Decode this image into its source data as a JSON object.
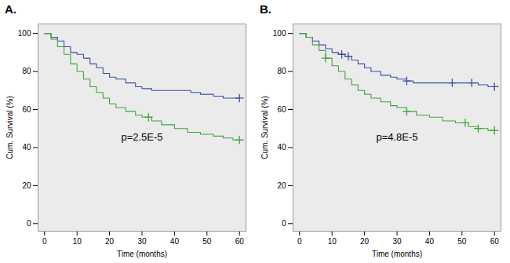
{
  "chart_data": [
    {
      "type": "line",
      "title": "A.",
      "x_label": "Time (months)",
      "y_label": "Cum. Survival (%)",
      "annotation": "p=2.5E-5",
      "xlim": [
        -2,
        62
      ],
      "ylim": [
        -4,
        105
      ],
      "xticks": [
        0,
        10,
        20,
        30,
        40,
        50,
        60
      ],
      "yticks": [
        0,
        20,
        40,
        60,
        80,
        100
      ],
      "grid": false,
      "line_style": "step",
      "marker": "plus",
      "series": [
        {
          "color": "#3a4fa6",
          "x": [
            0,
            2,
            4,
            6,
            8,
            10,
            12,
            14,
            16,
            18,
            20,
            22,
            25,
            28,
            30,
            33,
            35,
            40,
            45,
            48,
            52,
            55,
            60
          ],
          "values": [
            100,
            98,
            96,
            93,
            90,
            89,
            87,
            84,
            82,
            79,
            77,
            76,
            74,
            72,
            71,
            70,
            70,
            70,
            69,
            68,
            67,
            66,
            66
          ],
          "censored": [
            60
          ]
        },
        {
          "color": "#3fa53f",
          "x": [
            0,
            2,
            4,
            6,
            8,
            10,
            12,
            14,
            16,
            18,
            20,
            22,
            25,
            28,
            30,
            33,
            36,
            40,
            44,
            48,
            52,
            55,
            58,
            60
          ],
          "values": [
            100,
            97,
            93,
            89,
            84,
            80,
            76,
            72,
            69,
            66,
            63,
            61,
            59,
            57,
            56,
            54,
            52,
            50,
            48,
            47,
            46,
            45,
            44,
            44
          ],
          "censored": [
            32,
            60
          ]
        }
      ]
    },
    {
      "type": "line",
      "title": "B.",
      "x_label": "Time (months)",
      "y_label": "Cum. Survival (%)",
      "annotation": "p=4.8E-5",
      "xlim": [
        -2,
        62
      ],
      "ylim": [
        -4,
        105
      ],
      "xticks": [
        0,
        10,
        20,
        30,
        40,
        50,
        60
      ],
      "yticks": [
        0,
        20,
        40,
        60,
        80,
        100
      ],
      "grid": false,
      "line_style": "step",
      "marker": "plus",
      "series": [
        {
          "color": "#3a4fa6",
          "x": [
            0,
            2,
            4,
            6,
            8,
            10,
            12,
            14,
            16,
            18,
            20,
            22,
            25,
            28,
            30,
            33,
            35,
            40,
            45,
            50,
            55,
            58,
            60
          ],
          "values": [
            100,
            98,
            96,
            94,
            92,
            90,
            89,
            88,
            86,
            84,
            82,
            80,
            78,
            77,
            76,
            75,
            74,
            74,
            74,
            74,
            73,
            72,
            72
          ],
          "censored": [
            13,
            15,
            33,
            47,
            53,
            60
          ]
        },
        {
          "color": "#3fa53f",
          "x": [
            0,
            2,
            4,
            6,
            8,
            10,
            12,
            14,
            16,
            18,
            20,
            22,
            25,
            28,
            30,
            33,
            36,
            40,
            44,
            48,
            52,
            55,
            58,
            60
          ],
          "values": [
            100,
            98,
            94,
            91,
            87,
            83,
            80,
            76,
            73,
            70,
            68,
            66,
            64,
            62,
            61,
            59,
            57,
            56,
            54,
            53,
            51,
            50,
            49,
            49
          ],
          "censored": [
            8,
            33,
            51,
            55,
            60
          ]
        }
      ]
    }
  ]
}
